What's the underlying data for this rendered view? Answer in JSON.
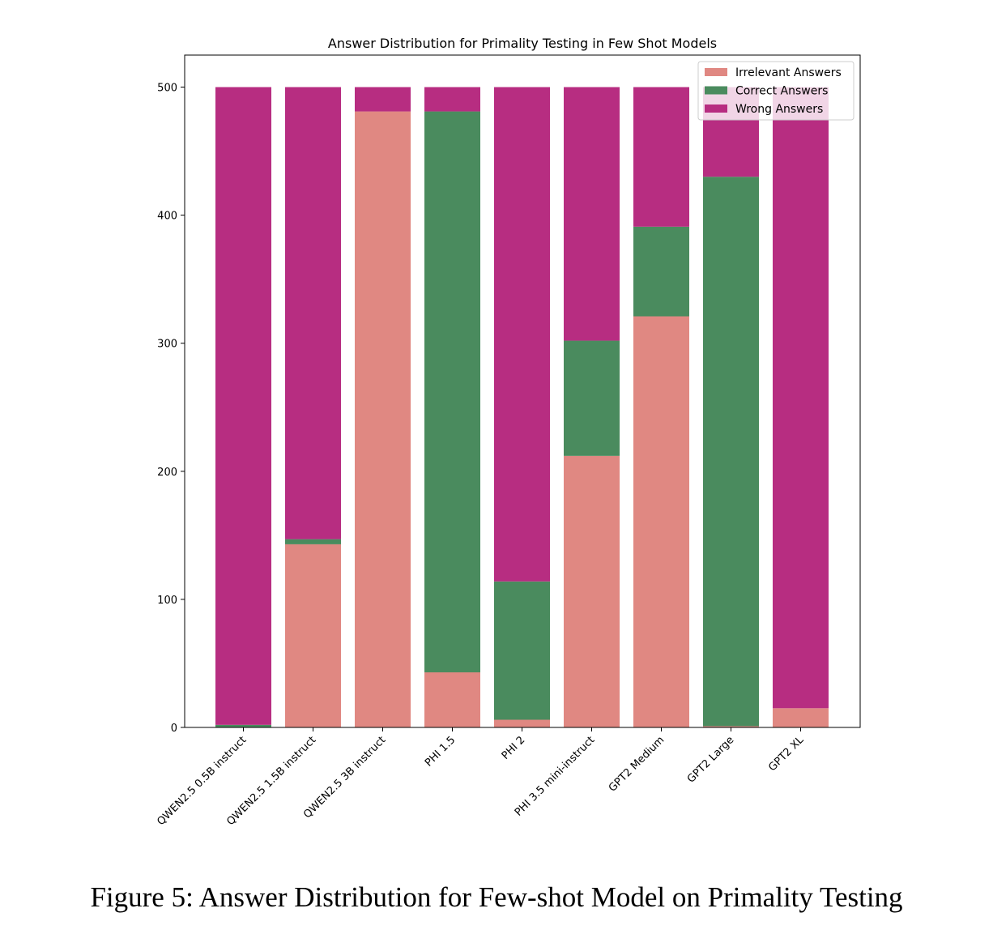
{
  "caption": "Figure 5: Answer Distribution for Few-shot Model on Primality Testing",
  "chart_data": {
    "type": "bar",
    "stacked": true,
    "title": "Answer Distribution for Primality Testing in Few Shot Models",
    "xlabel": "",
    "ylabel": "",
    "ylim": [
      0,
      525
    ],
    "yticks": [
      0,
      100,
      200,
      300,
      400,
      500
    ],
    "grid": false,
    "legend_position": "top-right",
    "categories": [
      "QWEN2.5 0.5B instruct",
      "QWEN2.5 1.5B instruct",
      "QWEN2.5 3B instruct",
      "PHI 1.5",
      "PHI 2",
      "PHI 3.5 mini-instruct",
      "GPT2 Medium",
      "GPT2 Large",
      "GPT2 XL"
    ],
    "series": [
      {
        "name": "Irrelevant Answers",
        "color": "#e08882",
        "values": [
          0,
          143,
          481,
          43,
          6,
          212,
          321,
          1,
          15
        ]
      },
      {
        "name": "Correct Answers",
        "color": "#4a8b5e",
        "values": [
          2,
          4,
          0,
          438,
          108,
          90,
          70,
          429,
          0
        ]
      },
      {
        "name": "Wrong Answers",
        "color": "#b72d81",
        "values": [
          498,
          353,
          19,
          19,
          386,
          198,
          109,
          70,
          485
        ]
      }
    ]
  }
}
